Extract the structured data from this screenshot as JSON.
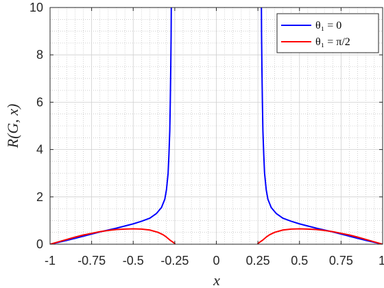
{
  "chart_data": {
    "type": "line",
    "xlabel": "x",
    "ylabel": "R(G, x)",
    "xlim": [
      -1,
      1
    ],
    "ylim": [
      0,
      10
    ],
    "xticks": [
      -1,
      -0.75,
      -0.5,
      -0.25,
      0,
      0.25,
      0.5,
      0.75,
      1
    ],
    "xtick_labels": [
      "-1",
      "-0.75",
      "-0.5",
      "-0.25",
      "0",
      "0.25",
      "0.5",
      "0.75",
      "1"
    ],
    "yticks": [
      0,
      2,
      4,
      6,
      8,
      10
    ],
    "ytick_labels": [
      "0",
      "2",
      "4",
      "6",
      "8",
      "10"
    ],
    "grid": true,
    "minor_grid": true,
    "legend_position": "top-right",
    "series": [
      {
        "name": "θ₁ = 0",
        "color": "#0000ff",
        "segments": [
          [
            [
              -1,
              0
            ],
            [
              -0.95,
              0.08
            ],
            [
              -0.9,
              0.16
            ],
            [
              -0.85,
              0.25
            ],
            [
              -0.8,
              0.34
            ],
            [
              -0.75,
              0.43
            ],
            [
              -0.7,
              0.52
            ],
            [
              -0.65,
              0.6
            ],
            [
              -0.6,
              0.68
            ],
            [
              -0.55,
              0.77
            ],
            [
              -0.5,
              0.86
            ],
            [
              -0.45,
              0.97
            ],
            [
              -0.4,
              1.1
            ],
            [
              -0.36,
              1.3
            ],
            [
              -0.33,
              1.55
            ],
            [
              -0.31,
              1.9
            ],
            [
              -0.3,
              2.3
            ],
            [
              -0.29,
              3.0
            ],
            [
              -0.285,
              3.8
            ],
            [
              -0.28,
              4.8
            ],
            [
              -0.277,
              6.0
            ],
            [
              -0.274,
              7.5
            ],
            [
              -0.272,
              8.8
            ],
            [
              -0.271,
              10
            ]
          ],
          [
            [
              0.271,
              10
            ],
            [
              0.272,
              8.8
            ],
            [
              0.274,
              7.5
            ],
            [
              0.277,
              6.0
            ],
            [
              0.28,
              4.8
            ],
            [
              0.285,
              3.8
            ],
            [
              0.29,
              3.0
            ],
            [
              0.3,
              2.3
            ],
            [
              0.31,
              1.9
            ],
            [
              0.33,
              1.55
            ],
            [
              0.36,
              1.3
            ],
            [
              0.4,
              1.1
            ],
            [
              0.45,
              0.97
            ],
            [
              0.5,
              0.86
            ],
            [
              0.55,
              0.77
            ],
            [
              0.6,
              0.68
            ],
            [
              0.65,
              0.6
            ],
            [
              0.7,
              0.52
            ],
            [
              0.75,
              0.43
            ],
            [
              0.8,
              0.34
            ],
            [
              0.85,
              0.25
            ],
            [
              0.9,
              0.16
            ],
            [
              0.95,
              0.08
            ],
            [
              1,
              0
            ]
          ]
        ]
      },
      {
        "name": "θ₁ = π/2",
        "color": "#ff0000",
        "segments": [
          [
            [
              -1,
              0
            ],
            [
              -0.95,
              0.1
            ],
            [
              -0.9,
              0.2
            ],
            [
              -0.85,
              0.3
            ],
            [
              -0.8,
              0.39
            ],
            [
              -0.75,
              0.46
            ],
            [
              -0.7,
              0.53
            ],
            [
              -0.65,
              0.58
            ],
            [
              -0.6,
              0.62
            ],
            [
              -0.55,
              0.64
            ],
            [
              -0.5,
              0.65
            ],
            [
              -0.45,
              0.64
            ],
            [
              -0.4,
              0.6
            ],
            [
              -0.35,
              0.5
            ],
            [
              -0.32,
              0.4
            ],
            [
              -0.3,
              0.3
            ],
            [
              -0.28,
              0.18
            ],
            [
              -0.26,
              0.08
            ],
            [
              -0.25,
              0.03
            ]
          ],
          [
            [
              0.25,
              0.03
            ],
            [
              0.26,
              0.08
            ],
            [
              0.28,
              0.18
            ],
            [
              0.3,
              0.3
            ],
            [
              0.32,
              0.4
            ],
            [
              0.35,
              0.5
            ],
            [
              0.4,
              0.6
            ],
            [
              0.45,
              0.64
            ],
            [
              0.5,
              0.65
            ],
            [
              0.55,
              0.64
            ],
            [
              0.6,
              0.62
            ],
            [
              0.65,
              0.58
            ],
            [
              0.7,
              0.53
            ],
            [
              0.75,
              0.46
            ],
            [
              0.8,
              0.39
            ],
            [
              0.85,
              0.3
            ],
            [
              0.9,
              0.2
            ],
            [
              0.95,
              0.1
            ],
            [
              1,
              0
            ]
          ]
        ]
      }
    ]
  }
}
